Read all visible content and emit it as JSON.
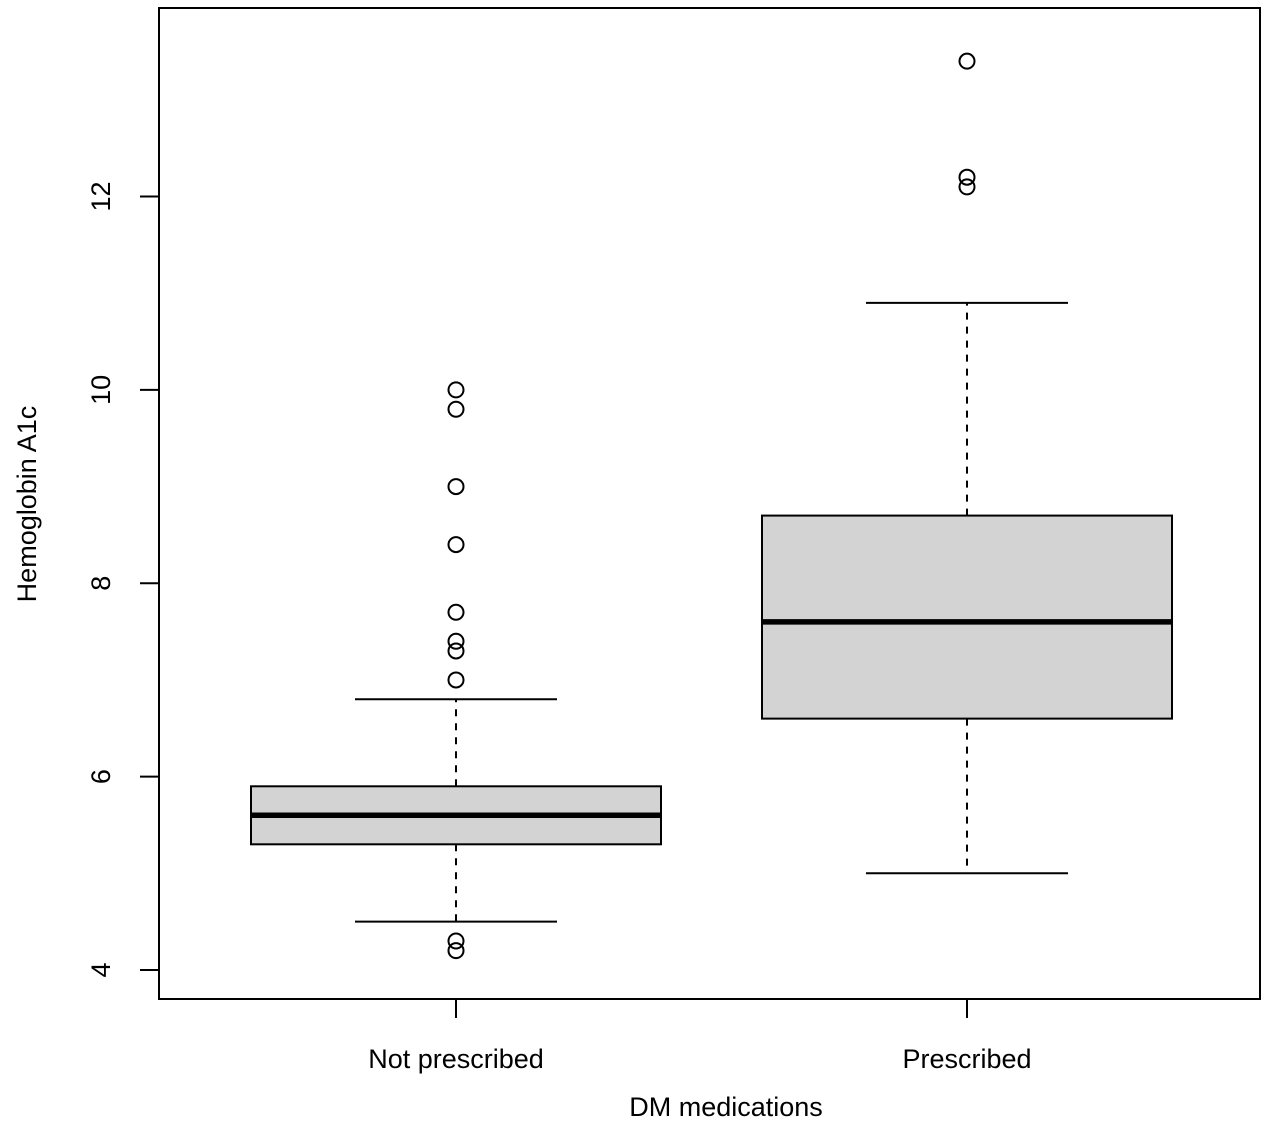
{
  "chart_data": {
    "type": "boxplot",
    "xlabel": "DM medications",
    "ylabel": "Hemoglobin A1c",
    "ylim": [
      3.7,
      13.95
    ],
    "yticks": [
      4,
      6,
      8,
      10,
      12
    ],
    "categories": [
      "Not prescribed",
      "Prescribed"
    ],
    "series": [
      {
        "category": "Not prescribed",
        "whisker_low": 4.5,
        "q1": 5.3,
        "median": 5.6,
        "q3": 5.9,
        "whisker_high": 6.8,
        "outliers": [
          4.2,
          4.3,
          7.0,
          7.3,
          7.4,
          7.7,
          8.4,
          9.0,
          9.8,
          10.0
        ]
      },
      {
        "category": "Prescribed",
        "whisker_low": 5.0,
        "q1": 6.6,
        "median": 7.6,
        "q3": 8.7,
        "whisker_high": 10.9,
        "outliers": [
          12.1,
          12.2,
          13.4
        ]
      }
    ]
  }
}
